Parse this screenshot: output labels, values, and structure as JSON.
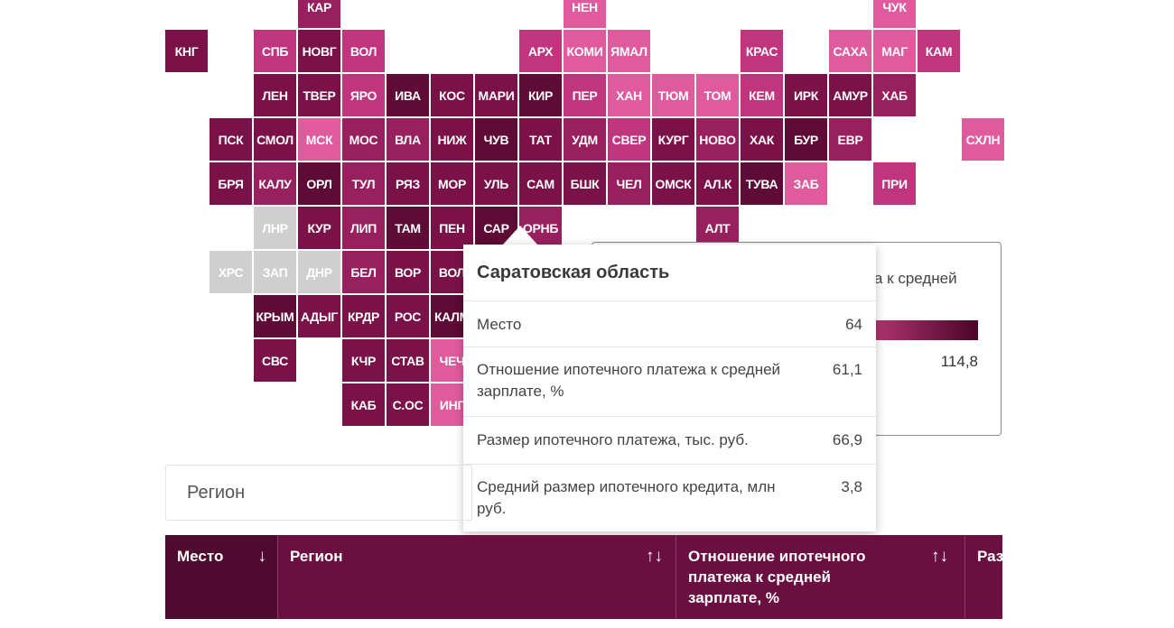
{
  "tiles": [
    {
      "label": "КАР",
      "color": "#98205f"
    },
    {
      "label": "НЕН",
      "color": "#e05a9e"
    },
    {
      "label": "ЧУК",
      "color": "#e05a9e"
    },
    {
      "label": "КНГ",
      "color": "#7a1148"
    },
    {
      "label": "СПБ",
      "color": "#c0367e"
    },
    {
      "label": "НОВГ",
      "color": "#7a1148"
    },
    {
      "label": "ВОЛ",
      "color": "#c0367e"
    },
    {
      "label": "АРХ",
      "color": "#c0367e"
    },
    {
      "label": "КОМИ",
      "color": "#e05a9e"
    },
    {
      "label": "ЯМАЛ",
      "color": "#e05a9e"
    },
    {
      "label": "КРАС",
      "color": "#c0367e"
    },
    {
      "label": "САХА",
      "color": "#e05a9e"
    },
    {
      "label": "МАГ",
      "color": "#e05a9e"
    },
    {
      "label": "КАМ",
      "color": "#c0367e"
    },
    {
      "label": "ЛЕН",
      "color": "#7a1148"
    },
    {
      "label": "ТВЕР",
      "color": "#7a1148"
    },
    {
      "label": "ЯРО",
      "color": "#c0367e"
    },
    {
      "label": "ИВА",
      "color": "#5e0b35"
    },
    {
      "label": "КОС",
      "color": "#7a1148"
    },
    {
      "label": "МАРИ",
      "color": "#7a1148"
    },
    {
      "label": "КИР",
      "color": "#5e0b35"
    },
    {
      "label": "ПЕР",
      "color": "#c0367e"
    },
    {
      "label": "ХАН",
      "color": "#e05a9e"
    },
    {
      "label": "ТЮМ",
      "color": "#e05a9e"
    },
    {
      "label": "ТОМ",
      "color": "#e05a9e"
    },
    {
      "label": "КЕМ",
      "color": "#c0367e"
    },
    {
      "label": "ИРК",
      "color": "#7a1148"
    },
    {
      "label": "АМУР",
      "color": "#7a1148"
    },
    {
      "label": "ХАБ",
      "color": "#98205f"
    },
    {
      "label": "ПСК",
      "color": "#7a1148"
    },
    {
      "label": "СМОЛ",
      "color": "#7a1148"
    },
    {
      "label": "МСК",
      "color": "#e05a9e"
    },
    {
      "label": "МОС",
      "color": "#98205f"
    },
    {
      "label": "ВЛА",
      "color": "#98205f"
    },
    {
      "label": "НИЖ",
      "color": "#7a1148"
    },
    {
      "label": "ЧУВ",
      "color": "#5e0b35"
    },
    {
      "label": "ТАТ",
      "color": "#7a1148"
    },
    {
      "label": "УДМ",
      "color": "#98205f"
    },
    {
      "label": "СВЕР",
      "color": "#c0367e"
    },
    {
      "label": "КУРГ",
      "color": "#7a1148"
    },
    {
      "label": "НОВО",
      "color": "#98205f"
    },
    {
      "label": "ХАК",
      "color": "#7a1148"
    },
    {
      "label": "БУР",
      "color": "#5e0b35"
    },
    {
      "label": "ЕВР",
      "color": "#98205f"
    },
    {
      "label": "СХЛН",
      "color": "#e05a9e"
    },
    {
      "label": "БРЯ",
      "color": "#7a1148"
    },
    {
      "label": "КАЛУ",
      "color": "#98205f"
    },
    {
      "label": "ОРЛ",
      "color": "#5e0b35"
    },
    {
      "label": "ТУЛ",
      "color": "#98205f"
    },
    {
      "label": "РЯЗ",
      "color": "#7a1148"
    },
    {
      "label": "МОР",
      "color": "#7a1148"
    },
    {
      "label": "УЛЬ",
      "color": "#7a1148"
    },
    {
      "label": "САМ",
      "color": "#7a1148"
    },
    {
      "label": "БШК",
      "color": "#7a1148"
    },
    {
      "label": "ЧЕЛ",
      "color": "#98205f"
    },
    {
      "label": "ОМСК",
      "color": "#7a1148"
    },
    {
      "label": "АЛ.К",
      "color": "#7a1148"
    },
    {
      "label": "ТУВА",
      "color": "#5e0b35"
    },
    {
      "label": "ЗАБ",
      "color": "#e05a9e"
    },
    {
      "label": "ПРИ",
      "color": "#c0367e"
    },
    {
      "label": "ЛНР",
      "color": "#cfcfcf"
    },
    {
      "label": "КУР",
      "color": "#7a1148"
    },
    {
      "label": "ЛИП",
      "color": "#98205f"
    },
    {
      "label": "ТАМ",
      "color": "#5e0b35"
    },
    {
      "label": "ПЕН",
      "color": "#7a1148"
    },
    {
      "label": "САР",
      "color": "#5e0b35"
    },
    {
      "label": "ОРНБ",
      "color": "#98205f"
    },
    {
      "label": "АЛТ",
      "color": "#98205f"
    },
    {
      "label": "ХРС",
      "color": "#cfcfcf"
    },
    {
      "label": "ЗАП",
      "color": "#cfcfcf"
    },
    {
      "label": "ДНР",
      "color": "#cfcfcf"
    },
    {
      "label": "БЕЛ",
      "color": "#98205f"
    },
    {
      "label": "ВОР",
      "color": "#7a1148"
    },
    {
      "label": "ВОЛ",
      "color": "#7a1148"
    },
    {
      "label": "КРЫМ",
      "color": "#5e0b35"
    },
    {
      "label": "АДЫГ",
      "color": "#7a1148"
    },
    {
      "label": "КРДР",
      "color": "#7a1148"
    },
    {
      "label": "РОС",
      "color": "#7a1148"
    },
    {
      "label": "КАЛМ",
      "color": "#5e0b35"
    },
    {
      "label": "СВС",
      "color": "#7a1148"
    },
    {
      "label": "КЧР",
      "color": "#7a1148"
    },
    {
      "label": "СТАВ",
      "color": "#7a1148"
    },
    {
      "label": "ЧЕЧ",
      "color": "#e05a9e"
    },
    {
      "label": "КАБ",
      "color": "#7a1148"
    },
    {
      "label": "С.ОС",
      "color": "#7a1148"
    },
    {
      "label": "ИНГ",
      "color": "#e05a9e"
    }
  ],
  "legend": {
    "title": "а к средней",
    "max": "114,8"
  },
  "tooltip": {
    "title": "Саратовская область",
    "rows": [
      {
        "label": "Место",
        "value": "64"
      },
      {
        "label": "Отношение ипотечного платежа к средней зарплате, %",
        "value": "61,1"
      },
      {
        "label": "Размер ипотечного платежа, тыс. руб.",
        "value": "66,9"
      },
      {
        "label": "Средний размер ипотечного кредита, млн руб.",
        "value": "3,8"
      }
    ]
  },
  "search": {
    "placeholder": "Регион"
  },
  "table": {
    "columns": [
      {
        "label": "Место",
        "sort": "↓"
      },
      {
        "label": "Регион",
        "sort": "↑↓"
      },
      {
        "label": "Отношение ипотечного платежа к средней зарплате, %",
        "sort": "↑↓"
      },
      {
        "label": "Размер ипотечного платежа"
      }
    ]
  }
}
